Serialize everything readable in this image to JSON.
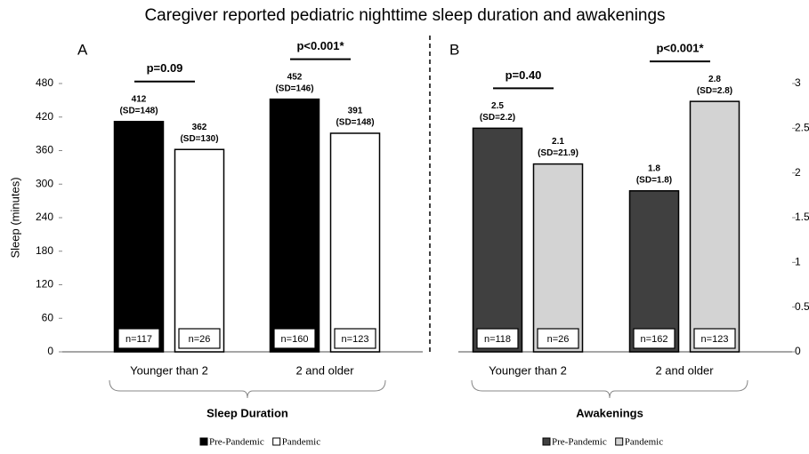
{
  "title": "Caregiver reported pediatric nighttime sleep duration and awakenings",
  "chart_data": [
    {
      "type": "bar",
      "panel": "A",
      "ylabel": "Sleep (minutes)",
      "group_label": "Sleep Duration",
      "categories": [
        "Younger than 2",
        "2 and older"
      ],
      "series": [
        {
          "name": "Pre-Pandemic",
          "color": "#000000",
          "values": [
            412,
            452
          ],
          "sd_labels": [
            "(SD=148)",
            "(SD=146)"
          ],
          "n_labels": [
            "n=117",
            "n=160"
          ]
        },
        {
          "name": "Pandemic",
          "color": "#ffffff",
          "values": [
            362,
            391
          ],
          "sd_labels": [
            "(SD=130)",
            "(SD=148)"
          ],
          "n_labels": [
            "n=26",
            "n=123"
          ]
        }
      ],
      "p_values": [
        "p=0.09",
        "p<0.001*"
      ],
      "ylim": [
        0,
        480
      ],
      "yticks": [
        0,
        60,
        120,
        180,
        240,
        300,
        360,
        420,
        480
      ],
      "axis_side": "left"
    },
    {
      "type": "bar",
      "panel": "B",
      "group_label": "Awakenings",
      "categories": [
        "Younger than 2",
        "2 and older"
      ],
      "series": [
        {
          "name": "Pre-Pandemic",
          "color": "#404040",
          "values": [
            2.5,
            1.8
          ],
          "sd_labels": [
            "(SD=2.2)",
            "(SD=1.8)"
          ],
          "n_labels": [
            "n=118",
            "n=162"
          ]
        },
        {
          "name": "Pandemic",
          "color": "#d3d3d3",
          "values": [
            2.1,
            2.8
          ],
          "sd_labels": [
            "(SD=21.9)",
            "(SD=2.8)"
          ],
          "n_labels": [
            "n=26",
            "n=123"
          ]
        }
      ],
      "p_values": [
        "p=0.40",
        "p<0.001*"
      ],
      "ylim": [
        0,
        3
      ],
      "yticks": [
        0,
        0.5,
        1,
        1.5,
        2,
        2.5,
        3
      ],
      "axis_side": "right"
    }
  ]
}
